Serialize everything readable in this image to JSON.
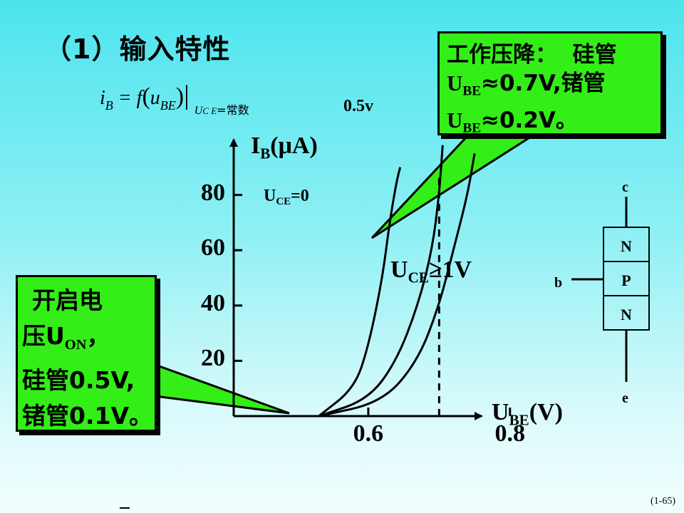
{
  "title": "（1）输入特性",
  "formula": {
    "lhs": "i",
    "lhs_sub": "B",
    "eq": " = f",
    "arg": "u",
    "arg_sub": "BE",
    "cond": "U",
    "cond_sub": "C E",
    "cond_tail": "=常数"
  },
  "callout_turn_on": {
    "line1": "开启电",
    "line2_prefix": "压U",
    "line2_sub": "ON",
    "line2_suffix": "，",
    "line3": "硅管0.5V,",
    "line4": "锗管0.1V。"
  },
  "callout_drop": {
    "line1": "工作压降：  硅管",
    "line2_prefix": "U",
    "line2_sub": "BE",
    "line2_suffix": "≈0.7V,锗管",
    "line3_prefix": "U",
    "line3_sub": "BE",
    "line3_suffix": "≈0.2V。"
  },
  "axis": {
    "y_label_prefix": "I",
    "y_label_sub": "B",
    "y_label_suffix": "(μA)",
    "x_label_prefix": "U",
    "x_label_sub": "BE",
    "x_label_suffix": "(V)"
  },
  "curve_labels": {
    "uce0_prefix": "U",
    "uce0_sub": "CE",
    "uce0_suffix": "=0",
    "half_v": "0.5v",
    "uce1_prefix": "U",
    "uce1_sub": "CE",
    "uce1_suffix": "≥1V"
  },
  "transistor": {
    "c": "c",
    "b": "b",
    "e": "e",
    "layers": [
      "N",
      "P",
      "N"
    ]
  },
  "page_number": "(1-65)",
  "chart_data": {
    "type": "line",
    "x_ticks": [
      "0.6",
      "0.8"
    ],
    "y_ticks": [
      "20",
      "40",
      "60",
      "80"
    ],
    "x_tick_values": [
      0.6,
      0.8
    ],
    "y_tick_values": [
      20,
      40,
      60,
      80
    ],
    "xlim": [
      0.41,
      0.76
    ],
    "ylim": [
      0,
      100
    ],
    "series": [
      {
        "name": "UCE=0",
        "x": [
          0.53,
          0.58,
          0.6,
          0.62,
          0.63,
          0.64,
          0.645
        ],
        "y": [
          0,
          10,
          25,
          50,
          70,
          85,
          90
        ]
      },
      {
        "name": "0.5v",
        "x": [
          0.53,
          0.6,
          0.64,
          0.67,
          0.69,
          0.7,
          0.705
        ],
        "y": [
          0,
          6,
          20,
          40,
          60,
          80,
          98
        ]
      },
      {
        "name": "UCE≥1V",
        "x": [
          0.53,
          0.62,
          0.67,
          0.7,
          0.72,
          0.74,
          0.75
        ],
        "y": [
          0,
          5,
          20,
          40,
          60,
          80,
          95
        ]
      }
    ],
    "reference_x": 0.7
  }
}
